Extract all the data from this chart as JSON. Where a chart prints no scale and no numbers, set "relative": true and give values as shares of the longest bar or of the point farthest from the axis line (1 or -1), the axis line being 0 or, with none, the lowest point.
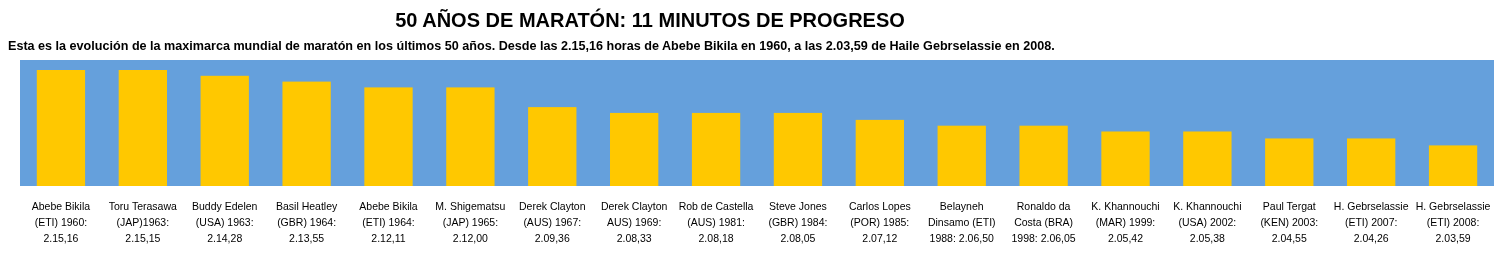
{
  "chart_data": {
    "type": "bar",
    "title": "50 AÑOS DE MARATÓN: 11 MINUTOS DE PROGRESO",
    "subtitle": "Esta es la evolución de la maximarca mundial de maratón en los últimos 50 años. Desde las 2.15,16 horas de Abebe Bikila en 1960, a las 2.03,59 de Haile Gebrselassie en 2008.",
    "categories": [
      "Abebe Bikila\n(ETI) 1960:\n2.15,16",
      "Toru Terasawa\n(JAP)1963:\n2.15,15",
      "Buddy Edelen\n(USA) 1963:\n2.14,28",
      "Basil Heatley\n(GBR) 1964:\n2.13,55",
      "Abebe Bikila\n(ETI) 1964:\n2.12,11",
      "M. Shigematsu\n(JAP) 1965:\n2.12,00",
      "Derek Clayton\n(AUS) 1967:\n2.09,36",
      "Derek Clayton\nAUS) 1969:\n2.08,33",
      "Rob de Castella\n(AUS) 1981:\n2.08,18",
      "Steve Jones\n(GBR) 1984:\n2.08,05",
      "Carlos Lopes\n(POR) 1985:\n2.07,12",
      "Belayneh\nDinsamo (ETI)\n1988: 2.06,50",
      "Ronaldo da\nCosta (BRA)\n1998: 2.06,05",
      "K. Khannouchi\n(MAR) 1999:\n2.05,42",
      "K. Khannouchi\n(USA) 2002:\n2.05,38",
      "Paul Tergat\n(KEN) 2003:\n2.04,55",
      "H. Gebrselassie\n(ETI) 2007:\n2.04,26",
      "H. Gebrselassie\n(ETI) 2008:\n2.03,59"
    ],
    "values": [
      1,
      1,
      0.95,
      0.9,
      0.85,
      0.85,
      0.68,
      0.63,
      0.63,
      0.63,
      0.57,
      0.52,
      0.52,
      0.47,
      0.47,
      0.41,
      0.41,
      0.35
    ],
    "color": "#ffc800",
    "relative": true
  }
}
